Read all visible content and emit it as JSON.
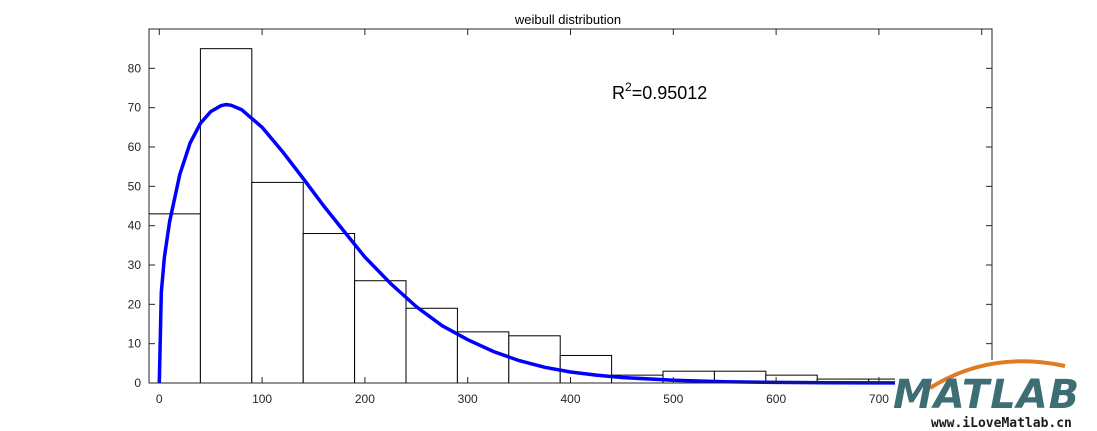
{
  "chart_data": {
    "type": "bar",
    "title": "weibull distribution",
    "xlabel": "",
    "ylabel": "",
    "xlim": [
      -10,
      810
    ],
    "ylim": [
      0,
      90
    ],
    "xticks": [
      0,
      100,
      200,
      300,
      400,
      500,
      600,
      700,
      800
    ],
    "yticks": [
      0,
      10,
      20,
      30,
      40,
      50,
      60,
      70,
      80
    ],
    "grid": false,
    "bin_edges": [
      -10,
      40,
      90,
      140,
      190,
      240,
      290,
      340,
      390,
      440,
      490,
      540,
      590,
      640,
      690,
      740,
      790,
      830
    ],
    "values": [
      43,
      85,
      51,
      38,
      26,
      19,
      13,
      12,
      7,
      2,
      3,
      3,
      2,
      1,
      1,
      1,
      1
    ],
    "bar_fill": "#ffffff",
    "bar_edge": "#000000",
    "series": [
      {
        "type": "line",
        "color": "#0000ff",
        "x": [
          0,
          2,
          5,
          10,
          20,
          30,
          40,
          50,
          60,
          65,
          70,
          80,
          100,
          120,
          140,
          160,
          180,
          200,
          225,
          250,
          275,
          300,
          325,
          350,
          375,
          400,
          425,
          450,
          500,
          550,
          600,
          650,
          700,
          750,
          800
        ],
        "y": [
          0,
          23,
          32,
          41,
          53,
          61,
          66,
          69,
          70.5,
          70.8,
          70.6,
          69.5,
          65,
          58.8,
          52,
          45,
          38.5,
          32,
          25.3,
          19.4,
          14.6,
          11,
          8,
          5.7,
          4,
          2.8,
          2,
          1.4,
          0.7,
          0.3,
          0.15,
          0.07,
          0.03,
          0.01,
          0
        ]
      }
    ],
    "annotation": {
      "base": "R",
      "sup": "2",
      "rest": "=0.95012"
    }
  },
  "watermark": {
    "logo_text": "MATLAB",
    "site": "www.iLoveMatlab.cn",
    "colors": {
      "teal": "#3c6e74",
      "orange": "#e07b24"
    }
  }
}
